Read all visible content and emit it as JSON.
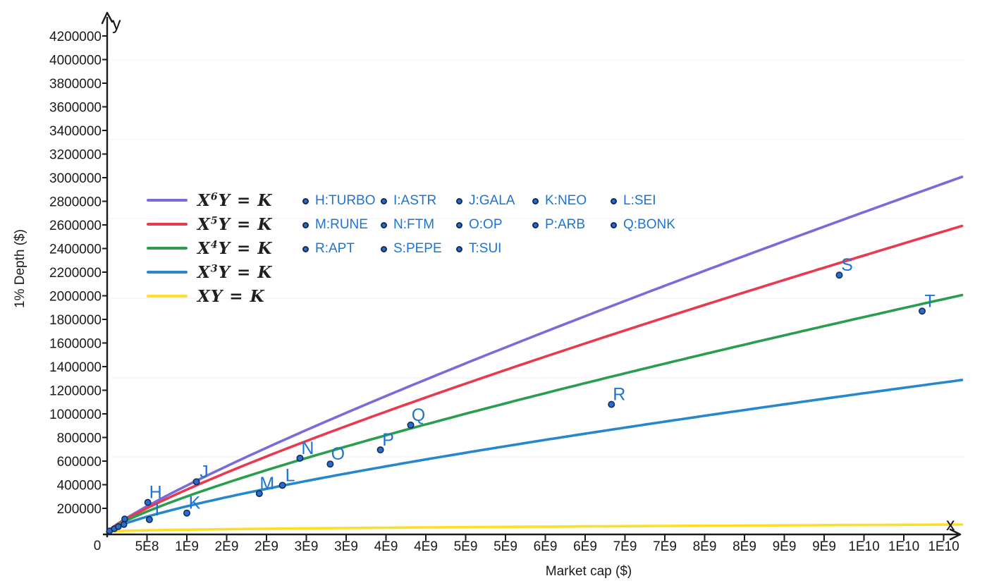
{
  "axes": {
    "x_title": "Market cap ($)",
    "y_title": "1% Depth ($)",
    "x_arrow_label": "x",
    "y_arrow_label": "y",
    "origin_label": "0"
  },
  "colors": {
    "axis": "#1a1a1a",
    "tick_text": "#1a1a1a",
    "gridline": "#f2f2f5",
    "point_fill": "#2b6cc8",
    "point_stroke": "#0e2c5e",
    "label_blue": "#1b74d6",
    "purple": "#7a6bd8",
    "red": "#e83a4e",
    "green": "#2a9d4e",
    "blue": "#2787cd",
    "yellow": "#ffdf26"
  },
  "chart_data": {
    "type": "scatter",
    "title": "",
    "xlabel": "Market cap ($)",
    "ylabel": "1% Depth ($)",
    "xlim": [
      0,
      10730000000
    ],
    "ylim": [
      0,
      4350000
    ],
    "grid": "faint-horizontal",
    "legend_position": "upper-left",
    "x_ticks": {
      "values": [
        500000000,
        1000000000,
        1500000000,
        2000000000,
        2500000000,
        3000000000,
        3500000000,
        4000000000,
        4500000000,
        5000000000,
        5500000000,
        6000000000,
        6500000000,
        7000000000,
        7500000000,
        8000000000,
        8500000000,
        9000000000,
        9500000000,
        10000000000,
        10500000000
      ],
      "labels": [
        "5E8",
        "1E9",
        "2E9",
        "2E9",
        "3E9",
        "3E9",
        "4E9",
        "4E9",
        "5E9",
        "5E9",
        "6E9",
        "6E9",
        "7E9",
        "7E9",
        "8E9",
        "8E9",
        "9E9",
        "9E9",
        "1E10",
        "1E10",
        "1E10"
      ]
    },
    "y_ticks": {
      "values": [
        200000,
        400000,
        600000,
        800000,
        1000000,
        1200000,
        1400000,
        1600000,
        1800000,
        2000000,
        2200000,
        2400000,
        2600000,
        2800000,
        3000000,
        3200000,
        3400000,
        3600000,
        3800000,
        4000000,
        4200000
      ],
      "labels": [
        "200000",
        "400000",
        "600000",
        "800000",
        "1000000",
        "1200000",
        "1400000",
        "1600000",
        "1800000",
        "2000000",
        "2200000",
        "2400000",
        "2600000",
        "2800000",
        "3000000",
        "3200000",
        "3400000",
        "3600000",
        "3800000",
        "4000000",
        "4200000"
      ]
    },
    "curves": [
      {
        "name": "x6y-k",
        "display": "X⁶Y = K",
        "pre": "X",
        "sup": "6",
        "post": "Y = K",
        "color_key": "purple",
        "model": "y = coef * x^power",
        "power": 0.8571,
        "coef": 0.0076,
        "end_y": 3010000
      },
      {
        "name": "x5y-k",
        "display": "X⁵Y = K",
        "pre": "X",
        "sup": "5",
        "post": "Y = K",
        "color_key": "red",
        "model": "y = coef * x^power",
        "power": 0.8333,
        "coef": 0.01135,
        "end_y": 2600000
      },
      {
        "name": "x4y-k",
        "display": "X⁴Y = K",
        "pre": "X",
        "sup": "4",
        "post": "Y = K",
        "color_key": "green",
        "model": "y = coef * x^power",
        "power": 0.8,
        "coef": 0.01896,
        "end_y": 2010000
      },
      {
        "name": "x3y-k",
        "display": "X³Y = K",
        "pre": "X",
        "sup": "3",
        "post": "Y = K",
        "color_key": "blue",
        "model": "y = coef * x^power",
        "power": 0.75,
        "coef": 0.0386,
        "end_y": 1290000
      },
      {
        "name": "xy-k",
        "display": "XY = K",
        "pre": "X",
        "sup": "",
        "post": "Y = K",
        "color_key": "yellow",
        "model": "y = coef * x^power",
        "power": 0.5,
        "coef": 0.608,
        "end_y": 63000
      }
    ],
    "points": [
      {
        "letter": "H",
        "token": "TURBO",
        "display": "H:TURBO",
        "x": 510000000,
        "y": 250000
      },
      {
        "letter": "I",
        "token": "ASTR",
        "display": "I:ASTR",
        "x": 530000000,
        "y": 105000
      },
      {
        "letter": "J",
        "token": "GALA",
        "display": "J:GALA",
        "x": 1120000000,
        "y": 425000
      },
      {
        "letter": "K",
        "token": "NEO",
        "display": "K:NEO",
        "x": 1000000000,
        "y": 160000
      },
      {
        "letter": "L",
        "token": "SEI",
        "display": "L:SEI",
        "x": 2200000000,
        "y": 395000
      },
      {
        "letter": "M",
        "token": "RUNE",
        "display": "M:RUNE",
        "x": 1910000000,
        "y": 325000
      },
      {
        "letter": "N",
        "token": "FTM",
        "display": "N:FTM",
        "x": 2420000000,
        "y": 625000
      },
      {
        "letter": "O",
        "token": "OP",
        "display": "O:OP",
        "x": 2800000000,
        "y": 575000
      },
      {
        "letter": "P",
        "token": "ARB",
        "display": "P:ARB",
        "x": 3430000000,
        "y": 695000
      },
      {
        "letter": "Q",
        "token": "BONK",
        "display": "Q:BONK",
        "x": 3810000000,
        "y": 905000
      },
      {
        "letter": "R",
        "token": "APT",
        "display": "R:APT",
        "x": 6330000000,
        "y": 1080000
      },
      {
        "letter": "S",
        "token": "PEPE",
        "display": "S:PEPE",
        "x": 9190000000,
        "y": 2175000
      },
      {
        "letter": "T",
        "token": "SUI",
        "display": "T:SUI",
        "x": 10230000000,
        "y": 1870000
      }
    ],
    "unlabeled_points": [
      {
        "x": 30000000,
        "y": 9000
      },
      {
        "x": 90000000,
        "y": 27000
      },
      {
        "x": 140000000,
        "y": 45000
      },
      {
        "x": 210000000,
        "y": 63000
      },
      {
        "x": 220000000,
        "y": 110000
      }
    ]
  }
}
